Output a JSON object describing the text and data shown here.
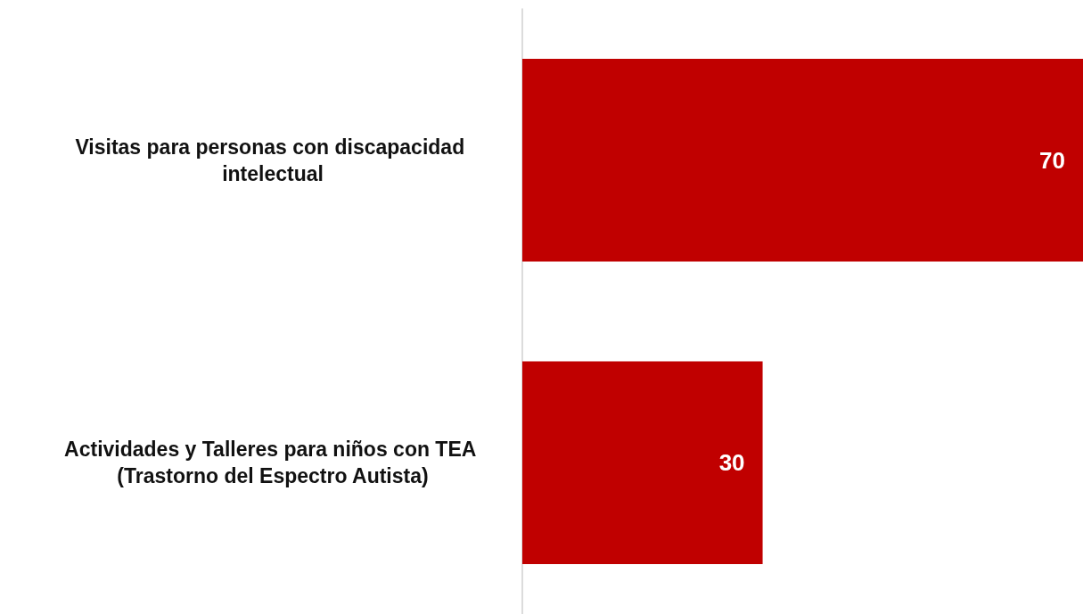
{
  "chart_data": {
    "type": "bar",
    "orientation": "horizontal",
    "categories": [
      "Visitas para personas con discapacidad intelectual",
      "Actividades y Talleres para niños con TEA (Trastorno del Espectro Autista)"
    ],
    "values": [
      70,
      30
    ],
    "color": "#c00000",
    "data_labels": true
  }
}
